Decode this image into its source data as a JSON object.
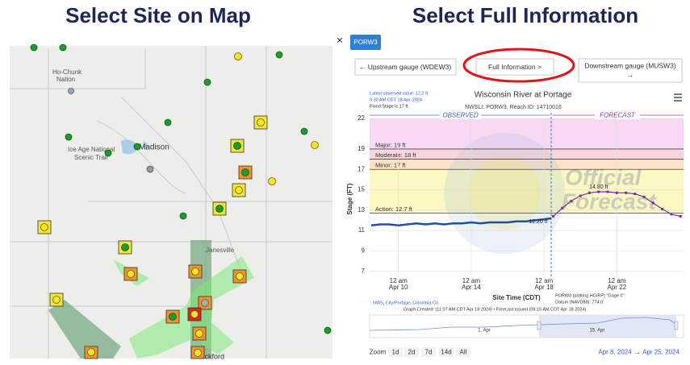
{
  "left": {
    "title": "Select Site on Map",
    "map_labels": [
      "Ho-Chunk",
      "Nation",
      "Ice Age National",
      "Scenic Trail",
      "Madison",
      "Janesville",
      "Rockford"
    ]
  },
  "right": {
    "title": "Select Full Information",
    "close": "×",
    "tab": "PORW3",
    "buttons": {
      "upstream": "← Upstream gauge (WDEW3)",
      "full": "Full Information >",
      "downstream": "Downstream gauge (MUSW3)",
      "downstream_arrow": "→"
    },
    "hydrograph": {
      "title": "Wisconsin River at Portage",
      "subtitle": "NWSLI: PORW3, Reach ID: 14710016",
      "info": [
        "Latest observed value: 12.2 ft",
        "9:30 AM CDT 18-Apr-2024",
        "Flood Stage is 17 ft"
      ],
      "sections": [
        "OBSERVED",
        "FORECAST"
      ],
      "watermark": [
        "Official",
        "Forecast"
      ],
      "y_label": "Stage (FT)",
      "x_label": "Site Time (CDT)",
      "ylim": [
        6.5,
        22
      ],
      "yticks": [
        7,
        9,
        11,
        13,
        15,
        17,
        19,
        22
      ],
      "xlim": [
        "2024-04-08T10:00",
        "2024-04-25T16:00"
      ],
      "xticks": [
        {
          "value": "2024-04-10T00:00",
          "label": "12 am",
          "date": "Apr 10"
        },
        {
          "value": "2024-04-14T00:00",
          "label": "12 am",
          "date": "Apr 14"
        },
        {
          "value": "2024-04-18T00:00",
          "label": "12 am",
          "date": "Apr 18"
        },
        {
          "value": "2024-04-22T00:00",
          "label": "12 am",
          "date": "Apr 22"
        }
      ],
      "thresholds": [
        {
          "label": "Major: 19 ft",
          "value": 19,
          "band_color": "#f7d9f4"
        },
        {
          "label": "Moderate: 18 ft",
          "value": 18,
          "band_color": "#fbd5dc"
        },
        {
          "label": "Minor: 17 ft",
          "value": 17,
          "band_color": "#fde2c6"
        },
        {
          "label": "Action: 12.7 ft",
          "value": 12.7,
          "band_color": "#fcf8c4"
        }
      ],
      "observed": {
        "color": "#1f4fa8",
        "x": [
          "2024-04-08T12:00",
          "2024-04-09T00:00",
          "2024-04-09T12:00",
          "2024-04-10T00:00",
          "2024-04-10T12:00",
          "2024-04-11T00:00",
          "2024-04-11T12:00",
          "2024-04-12T00:00",
          "2024-04-12T12:00",
          "2024-04-13T00:00",
          "2024-04-13T12:00",
          "2024-04-14T00:00",
          "2024-04-14T12:00",
          "2024-04-15T00:00",
          "2024-04-15T12:00",
          "2024-04-16T00:00",
          "2024-04-16T12:00",
          "2024-04-17T00:00",
          "2024-04-17T12:00",
          "2024-04-18T00:00",
          "2024-04-18T09:30"
        ],
        "values": [
          11.5,
          11.6,
          11.6,
          11.5,
          11.6,
          11.7,
          11.6,
          11.7,
          11.6,
          11.7,
          11.7,
          11.8,
          11.7,
          11.8,
          11.8,
          11.8,
          11.9,
          11.9,
          12.0,
          12.1,
          12.2
        ],
        "value_labels": {
          "20": "12.20 ft"
        }
      },
      "forecast": {
        "color": "#7b2f9e",
        "x": [
          "2024-04-18T12:00",
          "2024-04-19T00:00",
          "2024-04-19T12:00",
          "2024-04-20T00:00",
          "2024-04-20T12:00",
          "2024-04-21T00:00",
          "2024-04-21T12:00",
          "2024-04-22T00:00",
          "2024-04-22T12:00",
          "2024-04-23T00:00",
          "2024-04-23T12:00",
          "2024-04-24T00:00",
          "2024-04-24T12:00",
          "2024-04-25T00:00",
          "2024-04-25T12:00"
        ],
        "values": [
          12.4,
          13.2,
          13.9,
          14.4,
          14.7,
          14.8,
          14.8,
          14.7,
          14.7,
          14.6,
          14.3,
          13.7,
          13.1,
          12.6,
          12.4
        ],
        "value_labels": {
          "5": "14.80 ft"
        }
      },
      "footer": {
        "source": "NWS, City/Portage, Columbia Co.",
        "gauge": "PORW3 (plotting HGIRP) \"Gage 0\"",
        "datum": "Datum (NAVD88): 774.0'",
        "created": "Graph Created: (11:07 AM CDT Apr 18 2024) • Forecast Issued (09:15 AM CDT Apr 18 2024)"
      },
      "navigator_labels": [
        "1. Apr",
        "15. Apr"
      ],
      "zoom": [
        "Zoom",
        "1d",
        "2d",
        "7d",
        "14d",
        "All"
      ],
      "range": [
        "Apr 8, 2024",
        "→",
        "Apr 25, 2024"
      ]
    }
  }
}
